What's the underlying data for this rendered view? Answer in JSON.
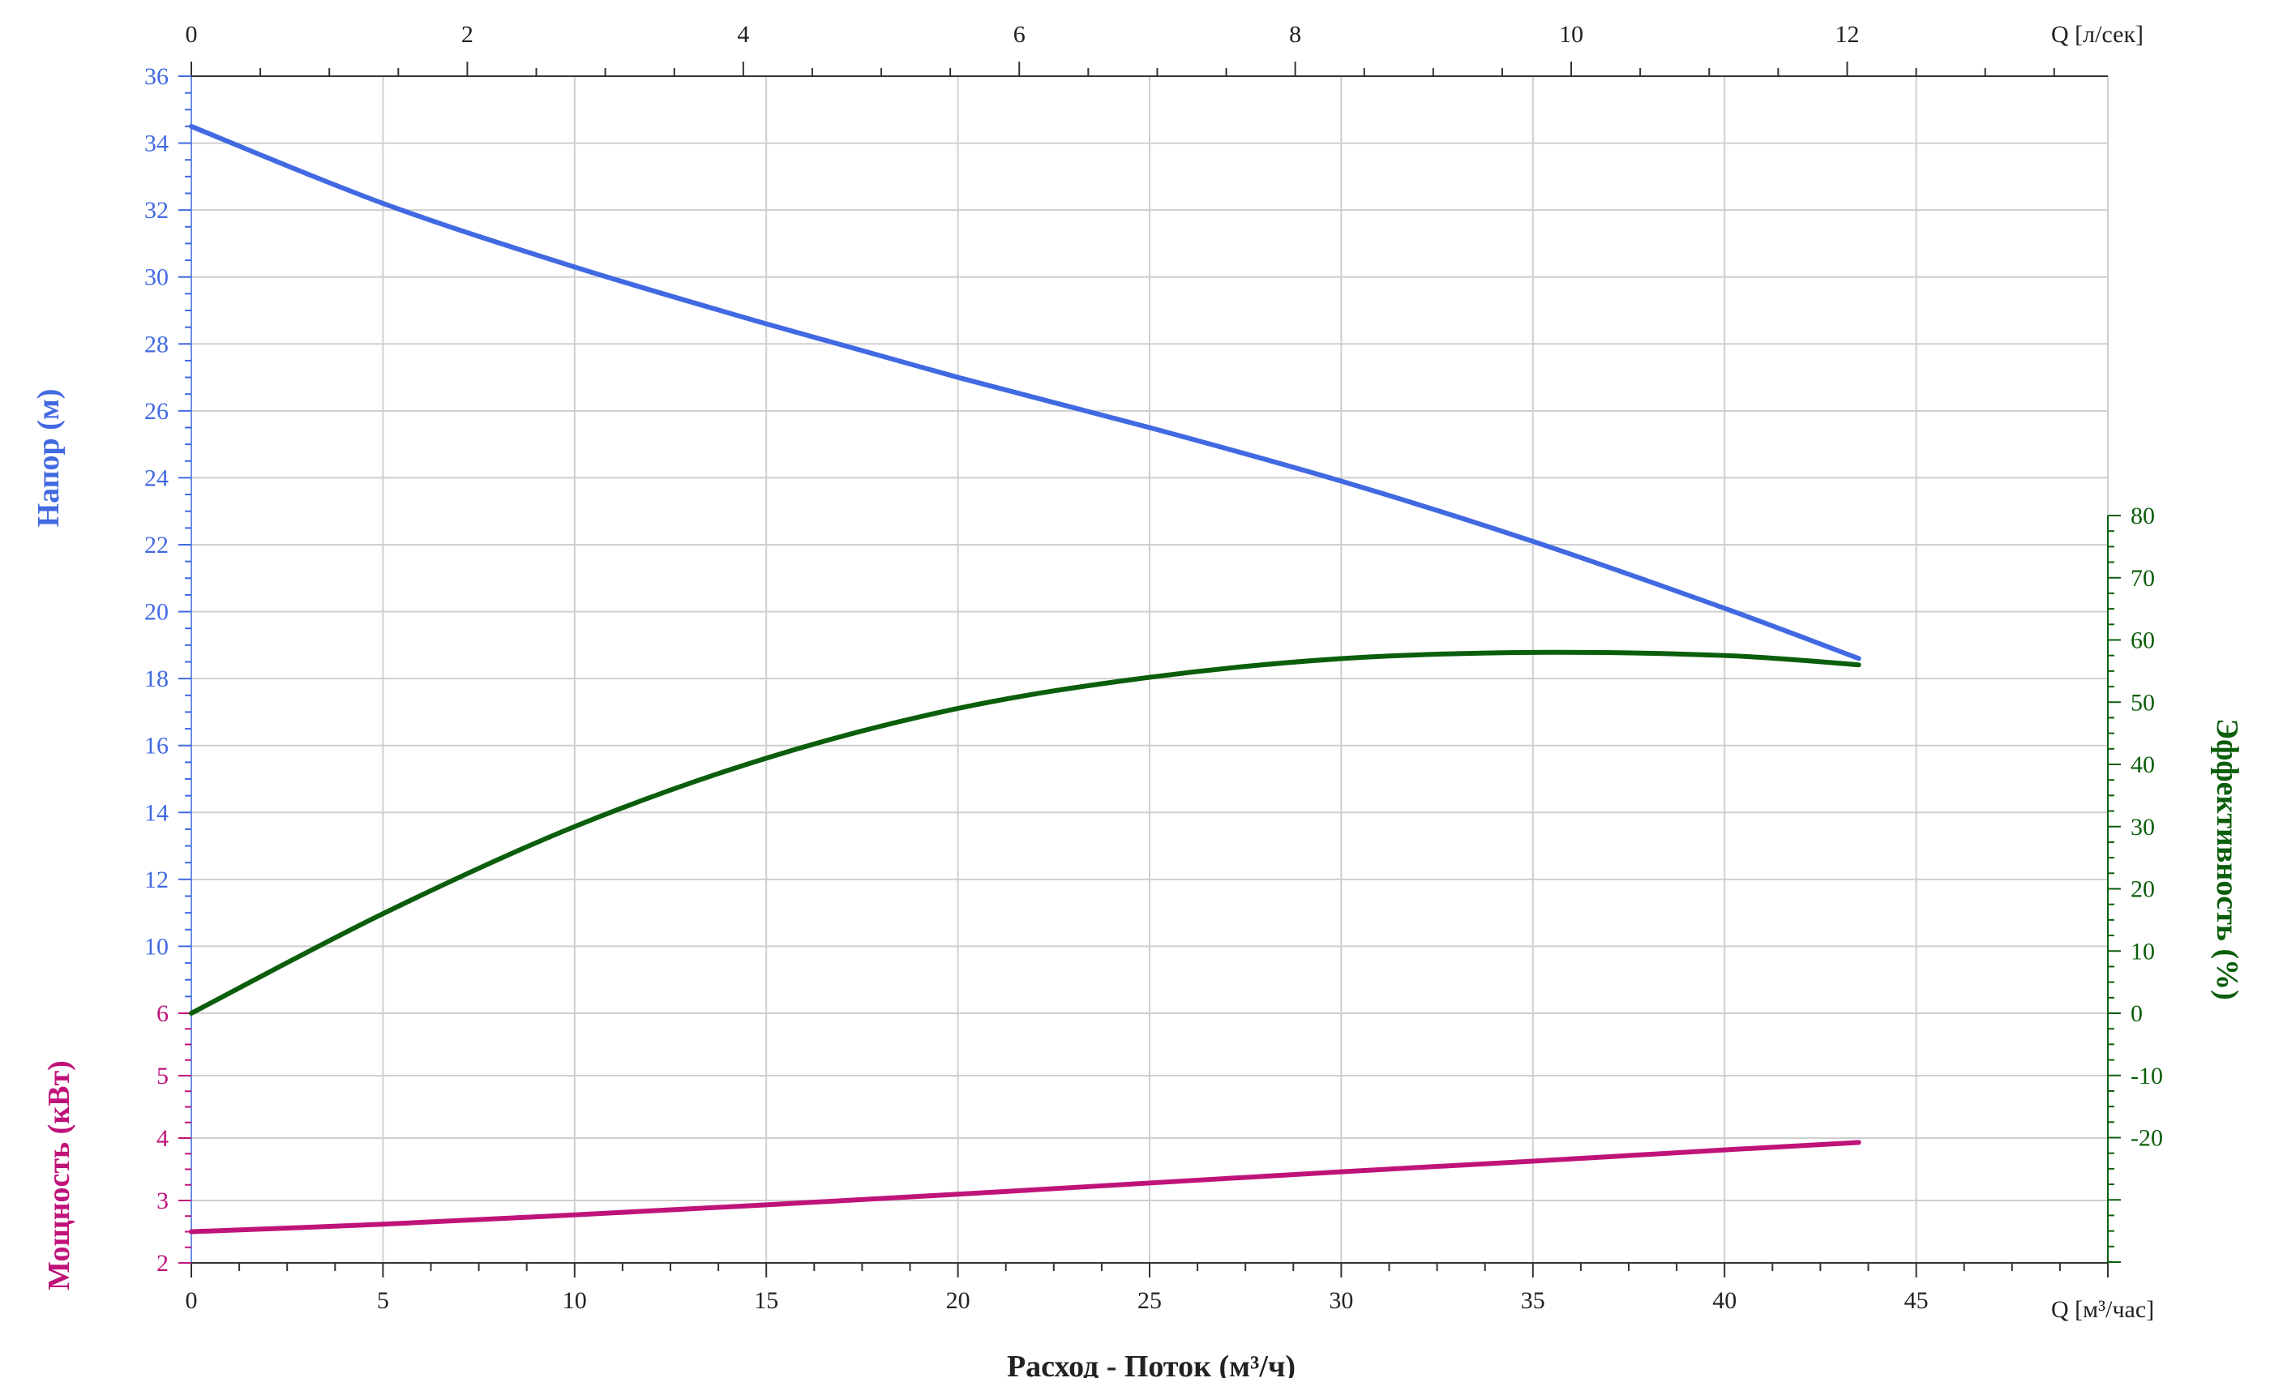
{
  "chart_data": {
    "type": "line",
    "x_bottom": {
      "label": "Q [м³/час]",
      "range": [
        0,
        50
      ],
      "ticks": [
        0,
        5,
        10,
        15,
        20,
        25,
        30,
        35,
        40,
        45
      ]
    },
    "x_top": {
      "label": "Q [л/сек]",
      "range": [
        0,
        13.889
      ],
      "ticks": [
        0,
        2,
        4,
        6,
        8,
        10,
        12
      ]
    },
    "x_title": "Расход - Поток (м³/ч)",
    "head_axis": {
      "label": "Напор (м)",
      "range": [
        8,
        36
      ],
      "ticks": [
        10,
        12,
        14,
        16,
        18,
        20,
        22,
        24,
        26,
        28,
        30,
        32,
        34,
        36
      ],
      "color": "#4169E1"
    },
    "power_axis": {
      "label": "Мощность (кВт)",
      "range": [
        2,
        6
      ],
      "ticks": [
        2,
        3,
        4,
        5,
        6
      ],
      "color": "#C0137A"
    },
    "efficiency_axis": {
      "label": "Эффективность (%)",
      "range": [
        -40,
        80
      ],
      "ticks": [
        80,
        70,
        60,
        50,
        40,
        30,
        20,
        10,
        0,
        -10,
        -20
      ],
      "color": "#0B5E0B"
    },
    "grid": true,
    "series": [
      {
        "name": "Напор (м)",
        "axis": "head",
        "color": "#4169E1",
        "x": [
          0,
          5,
          10,
          15,
          20,
          25,
          30,
          35,
          40,
          43.5
        ],
        "y": [
          34.5,
          32.2,
          30.3,
          28.6,
          27.0,
          25.5,
          23.9,
          22.1,
          20.1,
          18.6
        ]
      },
      {
        "name": "Эффективность (%)",
        "axis": "efficiency",
        "color": "#0B5E0B",
        "x": [
          0,
          5,
          10,
          15,
          20,
          25,
          30,
          35,
          40,
          43.5
        ],
        "y": [
          0,
          16,
          30,
          41,
          49,
          54,
          57,
          58,
          57.5,
          56
        ]
      },
      {
        "name": "Мощность (кВт)",
        "axis": "power",
        "color": "#C0137A",
        "x": [
          0,
          5,
          10,
          15,
          20,
          25,
          30,
          35,
          40,
          43.5
        ],
        "y": [
          2.5,
          2.62,
          2.77,
          2.93,
          3.1,
          3.28,
          3.46,
          3.63,
          3.81,
          3.93
        ]
      }
    ]
  }
}
